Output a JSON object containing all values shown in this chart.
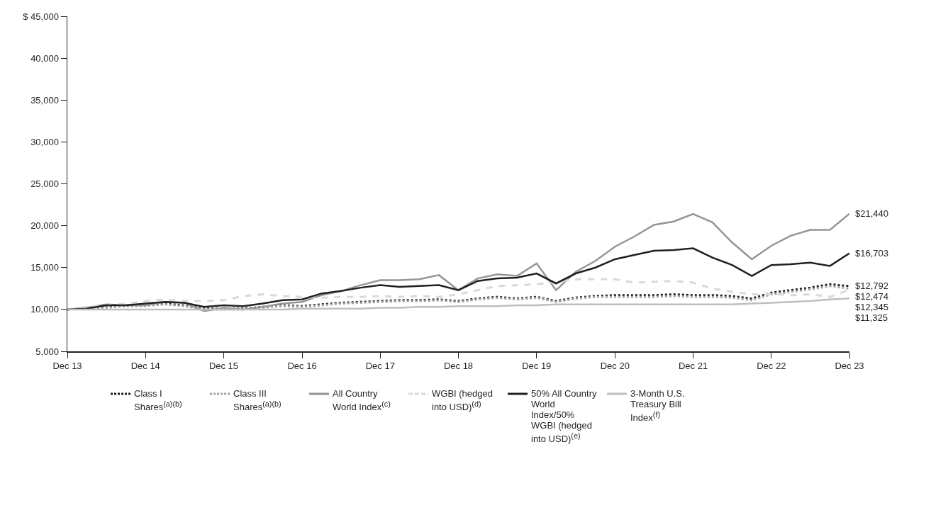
{
  "chart_data": {
    "type": "line",
    "x": [
      "2013-12",
      "2014-03",
      "2014-06",
      "2014-09",
      "2014-12",
      "2015-03",
      "2015-06",
      "2015-09",
      "2015-12",
      "2016-03",
      "2016-06",
      "2016-09",
      "2016-12",
      "2017-03",
      "2017-06",
      "2017-09",
      "2017-12",
      "2018-03",
      "2018-06",
      "2018-09",
      "2018-12",
      "2019-03",
      "2019-06",
      "2019-09",
      "2019-12",
      "2020-03",
      "2020-06",
      "2020-09",
      "2020-12",
      "2021-03",
      "2021-06",
      "2021-09",
      "2021-12",
      "2022-03",
      "2022-06",
      "2022-09",
      "2022-12",
      "2023-03",
      "2023-06",
      "2023-09",
      "2023-12"
    ],
    "series": [
      {
        "name": "Class I Shares$^{(a)(b)}$",
        "color": "#231f20",
        "line_style": "dotted",
        "values": [
          10000,
          10100,
          10300,
          10500,
          10500,
          10700,
          10500,
          10100,
          10100,
          10100,
          10300,
          10500,
          10400,
          10600,
          10800,
          10900,
          11000,
          11100,
          11100,
          11200,
          11000,
          11300,
          11500,
          11300,
          11500,
          11000,
          11400,
          11600,
          11700,
          11700,
          11700,
          11800,
          11700,
          11700,
          11600,
          11300,
          12000,
          12300,
          12600,
          13000,
          12792
        ],
        "value_labels": [
          null,
          null,
          null,
          null,
          null,
          null,
          null,
          null,
          null,
          null,
          null,
          null,
          null,
          null,
          null,
          null,
          null,
          null,
          null,
          null,
          null,
          null,
          null,
          null,
          null,
          null,
          null,
          null,
          null,
          null,
          null,
          null,
          null,
          null,
          null,
          null,
          null,
          null,
          null,
          null,
          "$12,792"
        ]
      },
      {
        "name": "Class III Shares$^{(a)(b)}$",
        "color": "#a6a6a6",
        "line_style": "dotted",
        "values": [
          10000,
          10100,
          10200,
          10400,
          10400,
          10600,
          10400,
          10000,
          10000,
          10000,
          10200,
          10400,
          10300,
          10500,
          10700,
          10800,
          10900,
          11000,
          11000,
          11100,
          10900,
          11200,
          11400,
          11200,
          11400,
          10900,
          11300,
          11500,
          11500,
          11500,
          11500,
          11600,
          11500,
          11500,
          11400,
          11100,
          11800,
          12100,
          12400,
          12800,
          12474
        ],
        "value_labels": [
          null,
          null,
          null,
          null,
          null,
          null,
          null,
          null,
          null,
          null,
          null,
          null,
          null,
          null,
          null,
          null,
          null,
          null,
          null,
          null,
          null,
          null,
          null,
          null,
          null,
          null,
          null,
          null,
          null,
          null,
          null,
          null,
          null,
          null,
          null,
          null,
          null,
          null,
          null,
          null,
          "$12,474"
        ]
      },
      {
        "name": "All Country World Index$^{(c)}$",
        "color": "#939598",
        "line_style": "solid",
        "values": [
          10000,
          10200,
          10600,
          10500,
          10500,
          10900,
          10800,
          9800,
          10200,
          10000,
          10300,
          10700,
          10900,
          11700,
          12200,
          12900,
          13500,
          13500,
          13600,
          14100,
          12300,
          13700,
          14200,
          14000,
          15500,
          12300,
          14500,
          15800,
          17500,
          18700,
          20100,
          20500,
          21400,
          20400,
          18000,
          16000,
          17600,
          18800,
          19500,
          19500,
          21440
        ],
        "value_labels": [
          null,
          null,
          null,
          null,
          null,
          null,
          null,
          null,
          null,
          null,
          null,
          null,
          null,
          null,
          null,
          null,
          null,
          null,
          null,
          null,
          null,
          null,
          null,
          null,
          null,
          null,
          null,
          null,
          null,
          null,
          null,
          null,
          null,
          null,
          null,
          null,
          null,
          null,
          null,
          null,
          "$21,440"
        ]
      },
      {
        "name": "WGBI (hedged into USD)$^{(d)}$",
        "color": "#d9d9d9",
        "line_style": "dashed",
        "values": [
          10000,
          10300,
          10500,
          10700,
          11000,
          11200,
          11000,
          11000,
          11100,
          11600,
          11800,
          11600,
          11500,
          11400,
          11500,
          11500,
          11600,
          11500,
          11600,
          11500,
          11800,
          12300,
          12800,
          12900,
          13000,
          13300,
          13600,
          13600,
          13600,
          13200,
          13300,
          13400,
          13200,
          12500,
          12100,
          11800,
          11900,
          11700,
          11800,
          11500,
          12345
        ],
        "value_labels": [
          null,
          null,
          null,
          null,
          null,
          null,
          null,
          null,
          null,
          null,
          null,
          null,
          null,
          null,
          null,
          null,
          null,
          null,
          null,
          null,
          null,
          null,
          null,
          null,
          null,
          null,
          null,
          null,
          null,
          null,
          null,
          null,
          null,
          null,
          null,
          null,
          null,
          null,
          null,
          null,
          "$12,345"
        ]
      },
      {
        "name": "50% All Country World Index/50% WGBI (hedged into USD)$^{(e)}$",
        "color": "#231f20",
        "line_style": "solid",
        "values": [
          10000,
          10100,
          10500,
          10500,
          10700,
          10900,
          10800,
          10300,
          10500,
          10400,
          10700,
          11100,
          11200,
          11900,
          12200,
          12600,
          12900,
          12700,
          12800,
          12900,
          12300,
          13400,
          13700,
          13800,
          14300,
          13100,
          14300,
          15000,
          16000,
          16500,
          17000,
          17100,
          17300,
          16200,
          15300,
          14000,
          15300,
          15400,
          15600,
          15200,
          16703
        ],
        "value_labels": [
          null,
          null,
          null,
          null,
          null,
          null,
          null,
          null,
          null,
          null,
          null,
          null,
          null,
          null,
          null,
          null,
          null,
          null,
          null,
          null,
          null,
          null,
          null,
          null,
          null,
          null,
          null,
          null,
          null,
          null,
          null,
          null,
          null,
          null,
          null,
          null,
          null,
          null,
          null,
          null,
          "$16,703"
        ]
      },
      {
        "name": "3-Month U.S. Treasury Bill Index$^{(f)}$",
        "color": "#bcbec0",
        "line_style": "solid",
        "values": [
          10000,
          10000,
          10000,
          10000,
          10000,
          10000,
          10000,
          10000,
          10000,
          10000,
          10000,
          10000,
          10100,
          10100,
          10100,
          10100,
          10200,
          10200,
          10300,
          10300,
          10400,
          10400,
          10400,
          10500,
          10500,
          10600,
          10600,
          10600,
          10600,
          10600,
          10600,
          10600,
          10600,
          10600,
          10600,
          10700,
          10800,
          10900,
          11000,
          11200,
          11325
        ],
        "value_labels": [
          null,
          null,
          null,
          null,
          null,
          null,
          null,
          null,
          null,
          null,
          null,
          null,
          null,
          null,
          null,
          null,
          null,
          null,
          null,
          null,
          null,
          null,
          null,
          null,
          null,
          null,
          null,
          null,
          null,
          null,
          null,
          null,
          null,
          null,
          null,
          null,
          null,
          null,
          null,
          null,
          "$11,325"
        ]
      }
    ],
    "ylim": [
      5000,
      45000
    ],
    "yticks": [
      {
        "value": 5000,
        "label": "5,000"
      },
      {
        "value": 10000,
        "label": "10,000"
      },
      {
        "value": 15000,
        "label": "15,000"
      },
      {
        "value": 20000,
        "label": "20,000"
      },
      {
        "value": 25000,
        "label": "25,000"
      },
      {
        "value": 30000,
        "label": "30,000"
      },
      {
        "value": 35000,
        "label": "35,000"
      },
      {
        "value": 40000,
        "label": "40,000"
      },
      {
        "value": 45000,
        "label": "$ 45,000"
      }
    ],
    "xlim": [
      "2013-12",
      "2023-12"
    ],
    "xticks": [
      {
        "value": "2013-12",
        "label": "Dec 13"
      },
      {
        "value": "2014-12",
        "label": "Dec 14"
      },
      {
        "value": "2015-12",
        "label": "Dec 15"
      },
      {
        "value": "2016-12",
        "label": "Dec 16"
      },
      {
        "value": "2017-12",
        "label": "Dec 17"
      },
      {
        "value": "2018-12",
        "label": "Dec 18"
      },
      {
        "value": "2019-12",
        "label": "Dec 19"
      },
      {
        "value": "2020-12",
        "label": "Dec 20"
      },
      {
        "value": "2021-12",
        "label": "Dec 21"
      },
      {
        "value": "2022-12",
        "label": "Dec 22"
      },
      {
        "value": "2023-12",
        "label": "Dec 23"
      }
    ],
    "grid": false,
    "legend": "bottom"
  }
}
